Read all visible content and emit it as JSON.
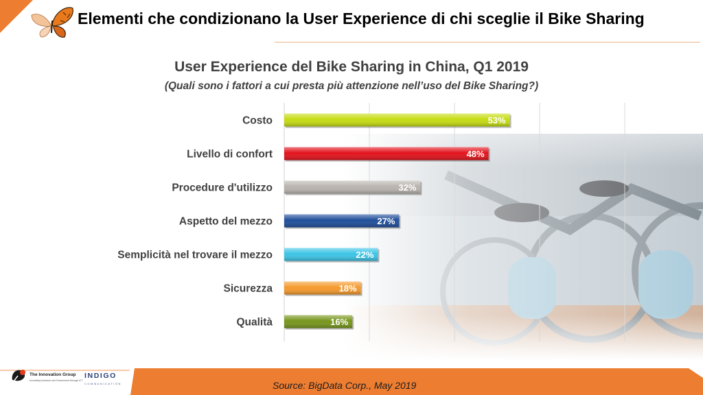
{
  "header": {
    "title": "Elementi che condizionano la User Experience di chi sceglie il Bike Sharing",
    "accent_color": "#ed7d31"
  },
  "chart_data": {
    "type": "bar",
    "orientation": "horizontal",
    "title": "User Experience del Bike Sharing in China, Q1 2019",
    "subtitle": "(Quali sono i fattori a cui presta più attenzione nell’uso del Bike Sharing?)",
    "categories": [
      "Costo",
      "Livello di confort",
      "Procedure d'utilizzo",
      "Aspetto del mezzo",
      "Semplicità nel trovare il mezzo",
      "Sicurezza",
      "Qualità"
    ],
    "values": [
      53,
      48,
      32,
      27,
      22,
      18,
      16
    ],
    "value_labels": [
      "53%",
      "48%",
      "32%",
      "27%",
      "22%",
      "18%",
      "16%"
    ],
    "colors": [
      "#c5dc12",
      "#e3131b",
      "#b9b4ae",
      "#1f4e9a",
      "#3cc4e6",
      "#f59a2d",
      "#77961c"
    ],
    "xlim": [
      0,
      100
    ],
    "gridlines": true,
    "unit": "%"
  },
  "footer": {
    "source": "Source: BigData Corp., May 2019",
    "logo_left_name": "The Innovation Group",
    "logo_left_tagline": "Innovating business and Government through ICT",
    "logo_right_name": "INDIGO",
    "logo_right_tagline": "COMMUNICATION"
  }
}
